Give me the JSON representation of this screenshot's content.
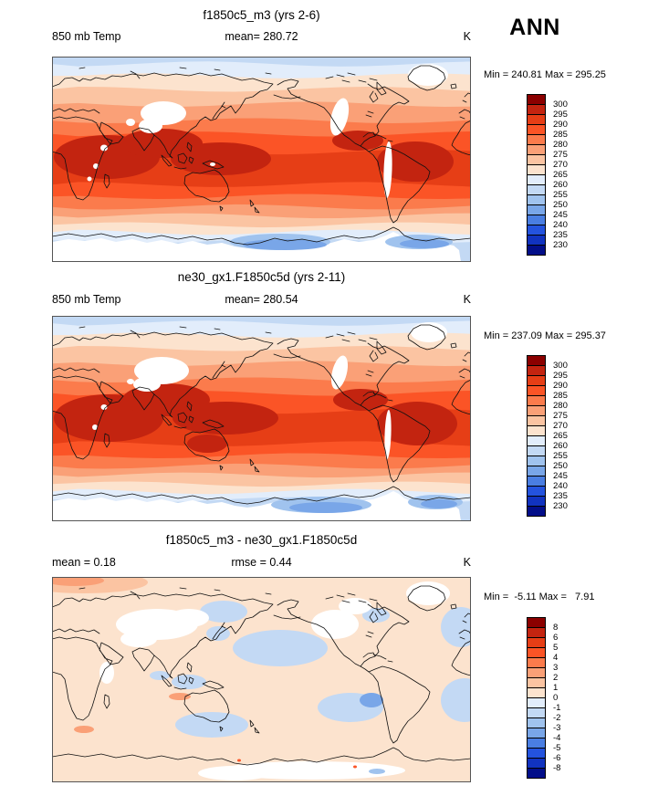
{
  "header": {
    "season": "ANN"
  },
  "chart_data": {
    "type": "heatmap",
    "subtype": "filled_contour_world_maps",
    "variable": "850 mb Temp",
    "units": "K",
    "projection": "cylindrical equidistant, Pacific-centered",
    "legend_position": "right",
    "palette_top_to_bottom": [
      "#8B0000",
      "#C32410",
      "#E63E16",
      "#FB5426",
      "#FB7B4C",
      "#FAA077",
      "#FBC4A2",
      "#FCE3CE",
      "#E2EDFB",
      "#C3D9F4",
      "#A0C3EE",
      "#79A6E8",
      "#4A7EE2",
      "#2453DE",
      "#1133C0",
      "#020E89"
    ],
    "panels": [
      {
        "title": "f1850c5_m3 (yrs 2-6)",
        "stat_left": "850 mb Temp",
        "stat_center": "mean= 280.72",
        "stat_right": "K",
        "mean": 280.72,
        "min": 240.81,
        "max": 295.25,
        "minmax": "Min = 240.81 Max = 295.25",
        "levels": [
          300,
          295,
          290,
          285,
          280,
          275,
          270,
          265,
          260,
          255,
          250,
          245,
          240,
          235,
          230
        ]
      },
      {
        "title": "ne30_gx1.F1850c5d (yrs 2-11)",
        "stat_left": "850 mb Temp",
        "stat_center": "mean= 280.54",
        "stat_right": "K",
        "mean": 280.54,
        "min": 237.09,
        "max": 295.37,
        "minmax": "Min = 237.09 Max = 295.37",
        "levels": [
          300,
          295,
          290,
          285,
          280,
          275,
          270,
          265,
          260,
          255,
          250,
          245,
          240,
          235,
          230
        ]
      },
      {
        "title": "f1850c5_m3 - ne30_gx1.F1850c5d",
        "stat_left": "mean =  0.18",
        "stat_center": "rmse =  0.44",
        "stat_right": "K",
        "mean": 0.18,
        "rmse": 0.44,
        "min": -5.11,
        "max": 7.91,
        "minmax": "Min =  -5.11 Max =   7.91",
        "levels": [
          8,
          6,
          5,
          4,
          3,
          2,
          1,
          0,
          -1,
          -2,
          -3,
          -4,
          -5,
          -6,
          -8
        ]
      }
    ]
  }
}
